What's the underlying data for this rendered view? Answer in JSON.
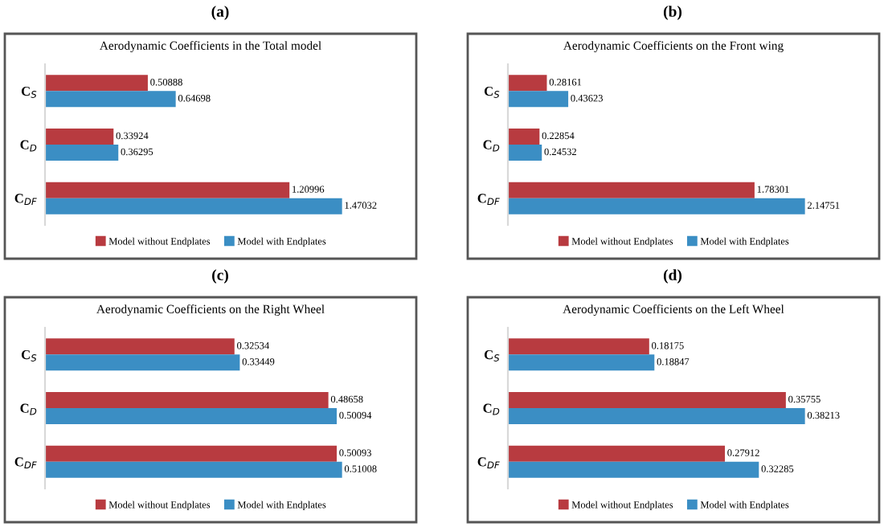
{
  "chart_data": [
    {
      "type": "bar",
      "orientation": "horizontal",
      "title": "(a)",
      "subtitle": "Aerodynamic Coefficients in the Total model",
      "categories": [
        "C$_{S}$",
        "C$_{D}$",
        "C$_{DF}$"
      ],
      "data_labels": true,
      "legend": "bottom",
      "series": [
        {
          "name": "Model without Endplates",
          "color": "#b83b40",
          "values": [
            0.50888,
            0.33924,
            1.20996
          ]
        },
        {
          "name": "Model with Endplates",
          "color": "#3b8ec4",
          "values": [
            0.64698,
            0.36295,
            1.47032
          ]
        }
      ]
    },
    {
      "type": "bar",
      "orientation": "horizontal",
      "title": "(b)",
      "subtitle": "Aerodynamic Coefficients on the Front wing",
      "categories": [
        "C$_{S}$",
        "C$_{D}$",
        "C$_{DF}$"
      ],
      "data_labels": true,
      "legend": "bottom",
      "series": [
        {
          "name": "Model without Endplates",
          "color": "#b83b40",
          "values": [
            0.28161,
            0.22854,
            1.78301
          ]
        },
        {
          "name": "Model with Endplates",
          "color": "#3b8ec4",
          "values": [
            0.43623,
            0.24532,
            2.14751
          ]
        }
      ]
    },
    {
      "type": "bar",
      "orientation": "horizontal",
      "title": "(c)",
      "subtitle": "Aerodynamic Coefficients on the Right Wheel",
      "categories": [
        "C$_{S}$",
        "C$_{D}$",
        "C$_{DF}$"
      ],
      "data_labels": true,
      "legend": "bottom",
      "series": [
        {
          "name": "Model without Endplates",
          "color": "#b83b40",
          "values": [
            0.32534,
            0.48658,
            0.50093
          ]
        },
        {
          "name": "Model with Endplates",
          "color": "#3b8ec4",
          "values": [
            0.33449,
            0.50094,
            0.51008
          ]
        }
      ]
    },
    {
      "type": "bar",
      "orientation": "horizontal",
      "title": "(d)",
      "subtitle": "Aerodynamic Coefficients on the Left Wheel",
      "categories": [
        "C$_{S}$",
        "C$_{D}$",
        "C$_{DF}$"
      ],
      "data_labels": true,
      "legend": "bottom",
      "series": [
        {
          "name": "Model without Endplates",
          "color": "#b83b40",
          "values": [
            0.18175,
            0.35755,
            0.27912
          ]
        },
        {
          "name": "Model with Endplates",
          "color": "#3b8ec4",
          "values": [
            0.18847,
            0.38213,
            0.32285
          ]
        }
      ]
    }
  ]
}
